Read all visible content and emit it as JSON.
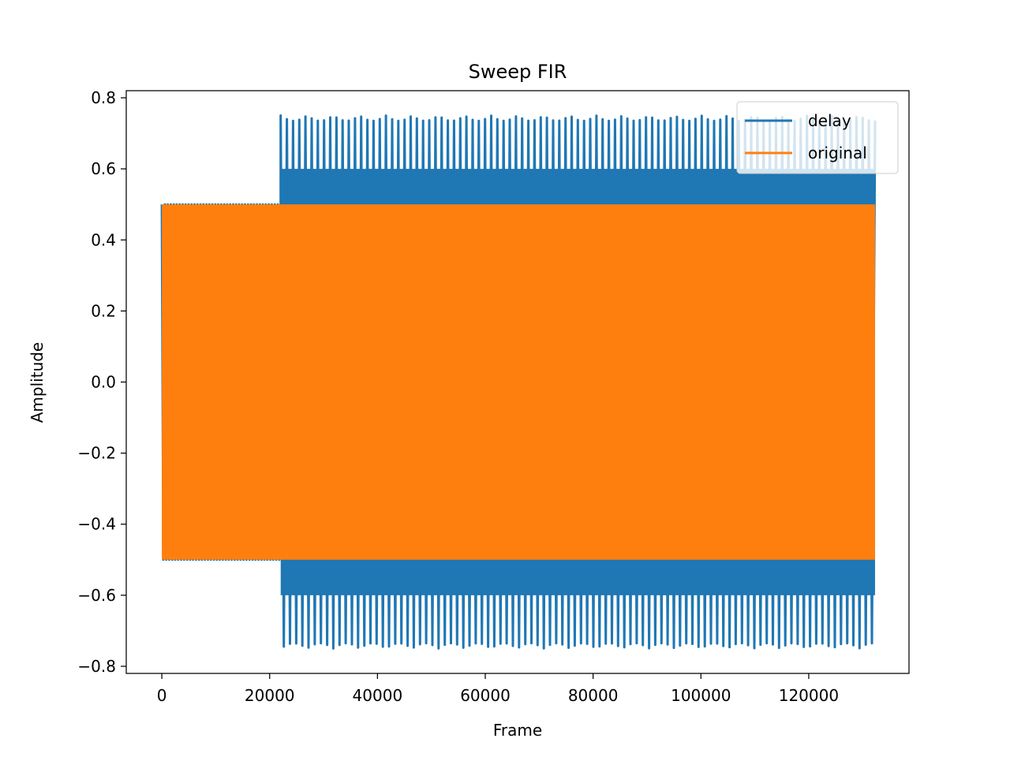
{
  "chart_data": {
    "type": "line",
    "title": "Sweep FIR",
    "xlabel": "Frame",
    "ylabel": "Amplitude",
    "xlim": [
      -6600,
      138600
    ],
    "ylim": [
      -0.82,
      0.82
    ],
    "xticks": [
      0,
      20000,
      40000,
      60000,
      80000,
      100000,
      120000
    ],
    "xtick_labels": [
      "0",
      "20000",
      "40000",
      "60000",
      "80000",
      "100000",
      "120000"
    ],
    "yticks": [
      -0.8,
      -0.6,
      -0.4,
      -0.2,
      0.0,
      0.2,
      0.4,
      0.6,
      0.8
    ],
    "ytick_labels": [
      "−0.8",
      "−0.6",
      "−0.4",
      "−0.2",
      "0.0",
      "0.2",
      "0.4",
      "0.6",
      "0.8"
    ],
    "grid": false,
    "legend_position": "upper right",
    "series": [
      {
        "name": "delay",
        "color": "#1f77b4",
        "x_start": 0,
        "x_end": 132300,
        "delay_onset": 22050,
        "envelope_before_onset": 0.5,
        "envelope_after_onset": 0.75,
        "approx_cycles_visible": 96
      },
      {
        "name": "original",
        "color": "#ff7f0e",
        "x_start": 0,
        "x_end": 132300,
        "envelope": 0.5
      }
    ]
  }
}
